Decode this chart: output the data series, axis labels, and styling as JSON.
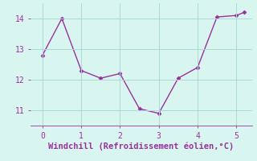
{
  "x": [
    0,
    0.5,
    1.0,
    1.5,
    2.0,
    2.5,
    3.0,
    3.5,
    4.0,
    4.5,
    5.0,
    5.2
  ],
  "y": [
    12.8,
    14.0,
    12.3,
    12.05,
    12.2,
    11.05,
    10.9,
    12.05,
    12.4,
    14.05,
    14.1,
    14.2
  ],
  "line_color": "#9b30a0",
  "marker": "D",
  "marker_size": 2.5,
  "bg_color": "#d8f5f0",
  "grid_color": "#a8dcd5",
  "xlabel": "Windchill (Refroidissement éolien,°C)",
  "xlabel_color": "#9b30a0",
  "xlabel_fontsize": 7.5,
  "tick_color": "#9b30a0",
  "tick_fontsize": 7,
  "xlim": [
    -0.3,
    5.4
  ],
  "ylim": [
    10.5,
    14.5
  ],
  "yticks": [
    11,
    12,
    13,
    14
  ],
  "xticks": [
    0,
    1,
    2,
    3,
    4,
    5
  ],
  "font_family": "monospace"
}
